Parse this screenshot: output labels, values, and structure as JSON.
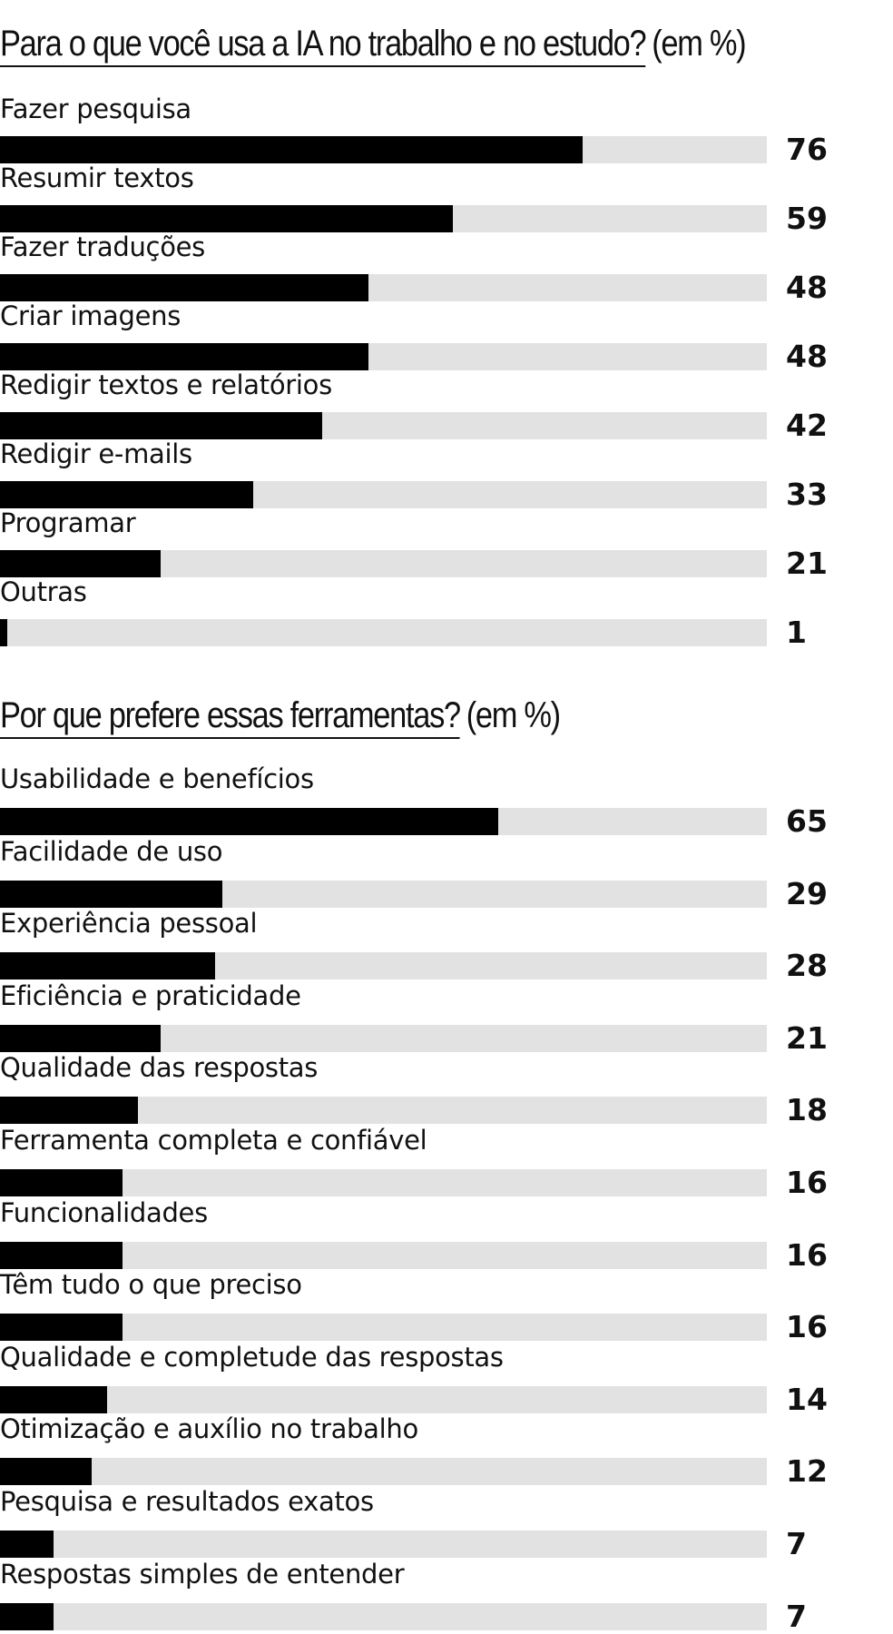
{
  "chart_data": [
    {
      "type": "bar",
      "orientation": "horizontal",
      "title": "Para o que você usa a IA no trabalho e no estudo?",
      "unit": "(em %)",
      "categories": [
        "Fazer pesquisa",
        "Resumir textos",
        "Fazer traduções",
        "Criar imagens",
        "Redigir textos e relatórios",
        "Redigir e-mails",
        "Programar",
        "Outras"
      ],
      "values": [
        76,
        59,
        48,
        48,
        42,
        33,
        21,
        1
      ],
      "value_labels": [
        "76",
        "59",
        "48",
        "48",
        "42",
        "33",
        "21",
        "1"
      ],
      "xlim": [
        0,
        100
      ],
      "colors": {
        "bar": "#000000",
        "track": "#e2e2e2"
      }
    },
    {
      "type": "bar",
      "orientation": "horizontal",
      "title": "Por que prefere essas ferramentas?",
      "unit": "(em %)",
      "categories": [
        "Usabilidade e benefícios",
        "Facilidade de uso",
        "Experiência pessoal",
        "Eficiência e praticidade",
        "Qualidade das respostas",
        "Ferramenta completa e confiável",
        "Funcionalidades",
        "Têm tudo o que preciso",
        "Qualidade e completude das respostas",
        "Otimização e auxílio no trabalho",
        "Pesquisa e resultados exatos",
        "Respostas simples de entender"
      ],
      "values": [
        65,
        29,
        28,
        21,
        18,
        16,
        16,
        16,
        14,
        12,
        7,
        7
      ],
      "value_labels": [
        "65",
        "29",
        "28",
        "21",
        "18",
        "16",
        "16",
        "16",
        "14",
        "12",
        "7",
        "7"
      ],
      "xlim": [
        0,
        100
      ],
      "colors": {
        "bar": "#000000",
        "track": "#e2e2e2"
      }
    }
  ]
}
